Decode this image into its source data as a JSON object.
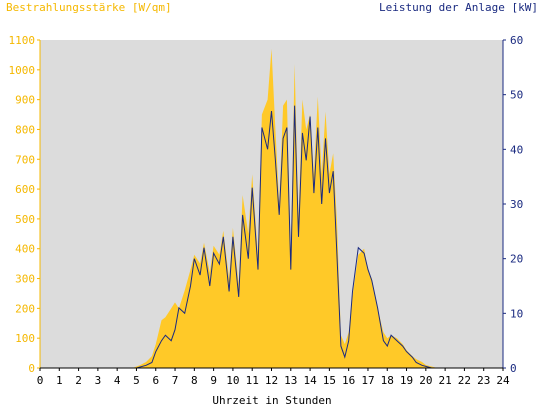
{
  "chart_data": {
    "type": "area",
    "left_axis_label": "Bestrahlungsstärke [W/qm]",
    "right_axis_label": "Leistung der Anlage [kW]",
    "xlabel": "Uhrzeit in Stunden",
    "xlim": [
      0,
      24
    ],
    "ylim_left": [
      0,
      1100
    ],
    "ylim_right": [
      0,
      60
    ],
    "x_ticks": [
      "0",
      "1",
      "2",
      "3",
      "4",
      "5",
      "6",
      "7",
      "8",
      "9",
      "10",
      "11",
      "12",
      "13",
      "14",
      "15",
      "16",
      "17",
      "18",
      "19",
      "20",
      "21",
      "22",
      "23",
      "24"
    ],
    "y_ticks_left": [
      "0",
      "100",
      "200",
      "300",
      "400",
      "500",
      "600",
      "700",
      "800",
      "900",
      "1000",
      "1100"
    ],
    "y_ticks_right": [
      "0",
      "10",
      "20",
      "30",
      "40",
      "50",
      "60"
    ],
    "colors": {
      "irradiance": "#ffc928",
      "power": "#1a2a80",
      "plot_bg": "#dcdcdc",
      "left_axis": "#f5b800",
      "right_axis": "#1a2a80"
    },
    "series": [
      {
        "name": "Bestrahlungsstärke",
        "axis": "left",
        "x": [
          0,
          4.8,
          5.2,
          5.5,
          5.8,
          6.0,
          6.3,
          6.5,
          6.8,
          7.0,
          7.2,
          7.5,
          7.8,
          8.0,
          8.3,
          8.5,
          8.8,
          9.0,
          9.3,
          9.5,
          9.8,
          10.0,
          10.3,
          10.5,
          10.8,
          11.0,
          11.3,
          11.5,
          11.8,
          12.0,
          12.2,
          12.4,
          12.6,
          12.8,
          13.0,
          13.2,
          13.4,
          13.6,
          13.8,
          14.0,
          14.2,
          14.4,
          14.6,
          14.8,
          15.0,
          15.2,
          15.4,
          15.6,
          15.8,
          16.0,
          16.2,
          16.5,
          16.8,
          17.0,
          17.2,
          17.5,
          17.8,
          18.0,
          18.2,
          18.5,
          18.8,
          19.0,
          19.3,
          19.5,
          19.8,
          20.0,
          20.3,
          20.6,
          24
        ],
        "y": [
          0,
          0,
          10,
          20,
          40,
          80,
          160,
          170,
          200,
          220,
          200,
          260,
          330,
          380,
          350,
          420,
          320,
          410,
          380,
          460,
          300,
          470,
          280,
          580,
          450,
          650,
          380,
          850,
          900,
          1070,
          800,
          550,
          880,
          900,
          380,
          1020,
          500,
          900,
          800,
          850,
          650,
          910,
          650,
          860,
          650,
          720,
          480,
          110,
          80,
          120,
          240,
          380,
          400,
          330,
          300,
          200,
          120,
          100,
          110,
          100,
          80,
          60,
          40,
          30,
          20,
          10,
          5,
          0,
          0
        ]
      },
      {
        "name": "Leistung der Anlage",
        "axis": "right",
        "x": [
          0,
          5.0,
          5.5,
          5.8,
          6.0,
          6.3,
          6.5,
          6.8,
          7.0,
          7.2,
          7.5,
          7.8,
          8.0,
          8.3,
          8.5,
          8.8,
          9.0,
          9.3,
          9.5,
          9.8,
          10.0,
          10.3,
          10.5,
          10.8,
          11.0,
          11.3,
          11.5,
          11.8,
          12.0,
          12.2,
          12.4,
          12.6,
          12.8,
          13.0,
          13.2,
          13.4,
          13.6,
          13.8,
          14.0,
          14.2,
          14.4,
          14.6,
          14.8,
          15.0,
          15.2,
          15.4,
          15.6,
          15.8,
          16.0,
          16.2,
          16.5,
          16.8,
          17.0,
          17.2,
          17.5,
          17.8,
          18.0,
          18.2,
          18.5,
          18.8,
          19.0,
          19.3,
          19.5,
          19.8,
          20.0,
          20.3,
          20.6,
          24
        ],
        "y": [
          0,
          0,
          0.5,
          1,
          3,
          5,
          6,
          5,
          7,
          11,
          10,
          15,
          20,
          17,
          22,
          15,
          21,
          19,
          24,
          14,
          24,
          13,
          28,
          20,
          33,
          18,
          44,
          40,
          47,
          38,
          28,
          42,
          44,
          18,
          48,
          24,
          43,
          38,
          46,
          32,
          44,
          30,
          42,
          32,
          36,
          20,
          4,
          2,
          5,
          14,
          22,
          21,
          18,
          16,
          11,
          5,
          4,
          6,
          5,
          4,
          3,
          2,
          1,
          0.5,
          0.3,
          0,
          0,
          0
        ]
      }
    ]
  }
}
